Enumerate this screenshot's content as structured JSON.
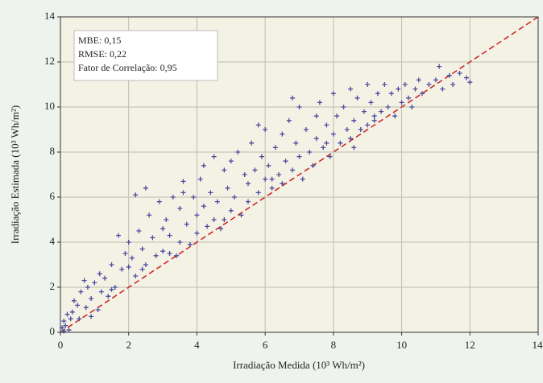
{
  "chart_data": {
    "type": "scatter",
    "xlabel": "Irradiação Medida (10³ Wh/m²)",
    "ylabel": "Irradiação Estimada (10³ Wh/m²)",
    "annotations": [
      "MBE: 0,15",
      "RMSE: 0,22",
      "Fator de Correlação: 0,95"
    ],
    "xlim": [
      0,
      14
    ],
    "ylim": [
      0,
      14
    ],
    "xticks": [
      0,
      2,
      4,
      6,
      8,
      10,
      12,
      14
    ],
    "yticks": [
      0,
      2,
      4,
      6,
      8,
      10,
      12,
      14
    ],
    "grid": true,
    "color": "#4b4b9e",
    "reference_line": {
      "x": [
        0,
        14
      ],
      "y": [
        0,
        14
      ],
      "color": "#cc2a2a"
    },
    "x": [
      0.05,
      0.1,
      0.15,
      0.2,
      0.25,
      0.3,
      0.1,
      0.35,
      0.4,
      0.5,
      0.55,
      0.6,
      0.7,
      0.75,
      0.8,
      0.9,
      1.0,
      1.1,
      1.15,
      1.2,
      1.3,
      1.4,
      1.5,
      1.6,
      1.7,
      1.8,
      1.9,
      2.0,
      2.0,
      2.1,
      2.2,
      2.2,
      2.3,
      2.4,
      2.5,
      2.5,
      2.6,
      2.7,
      2.8,
      2.9,
      3.0,
      3.0,
      3.1,
      3.2,
      3.3,
      3.4,
      3.5,
      3.5,
      3.6,
      3.7,
      3.8,
      3.9,
      4.0,
      4.0,
      4.1,
      4.2,
      4.3,
      4.4,
      4.5,
      4.5,
      4.6,
      4.7,
      4.8,
      4.9,
      5.0,
      5.0,
      5.1,
      5.2,
      5.3,
      5.4,
      5.5,
      5.5,
      5.6,
      5.7,
      5.8,
      5.9,
      6.0,
      6.0,
      6.1,
      6.2,
      6.3,
      6.4,
      6.5,
      6.5,
      6.6,
      6.7,
      6.8,
      6.9,
      7.0,
      7.0,
      7.1,
      7.2,
      7.3,
      7.4,
      7.5,
      7.5,
      7.6,
      7.7,
      7.8,
      7.9,
      8.0,
      8.0,
      8.1,
      8.2,
      8.3,
      8.4,
      8.5,
      8.5,
      8.6,
      8.7,
      8.8,
      8.9,
      9.0,
      9.0,
      9.1,
      9.2,
      9.3,
      9.4,
      9.5,
      9.6,
      9.7,
      9.8,
      9.9,
      10.0,
      10.1,
      10.2,
      10.4,
      10.5,
      10.6,
      10.8,
      11.0,
      11.1,
      11.2,
      11.4,
      11.5,
      11.7,
      11.9,
      12.0,
      3.6,
      4.2,
      5.8,
      6.8,
      2.4,
      1.5,
      0.9,
      6.2,
      7.8,
      9.2,
      10.3,
      8.6,
      4.8,
      3.2
    ],
    "y": [
      0.2,
      0.5,
      0.3,
      0.8,
      0.1,
      0.6,
      0.05,
      0.9,
      1.4,
      1.2,
      0.6,
      1.8,
      2.3,
      1.1,
      2.0,
      1.5,
      2.2,
      1.0,
      2.6,
      1.8,
      2.4,
      1.6,
      3.0,
      2.0,
      4.3,
      2.8,
      3.5,
      2.9,
      4.0,
      3.3,
      6.1,
      2.5,
      4.5,
      3.7,
      6.4,
      3.0,
      5.2,
      4.2,
      3.4,
      5.8,
      4.6,
      3.6,
      5.0,
      4.3,
      6.0,
      3.4,
      5.5,
      4.0,
      6.7,
      4.8,
      3.9,
      6.0,
      5.2,
      4.4,
      6.8,
      5.6,
      4.7,
      6.2,
      5.0,
      7.8,
      5.8,
      4.6,
      7.2,
      6.4,
      5.4,
      7.6,
      6.0,
      8.0,
      5.2,
      7.0,
      6.6,
      5.8,
      8.4,
      7.2,
      6.2,
      7.8,
      6.8,
      9.0,
      7.4,
      6.4,
      8.2,
      7.0,
      8.8,
      6.6,
      7.6,
      9.4,
      7.2,
      8.4,
      7.8,
      10.0,
      6.8,
      9.0,
      8.0,
      7.4,
      9.6,
      8.6,
      10.2,
      8.2,
      9.2,
      7.8,
      8.8,
      10.6,
      9.6,
      8.4,
      10.0,
      9.0,
      10.8,
      8.6,
      9.4,
      10.4,
      9.0,
      9.8,
      9.2,
      11.0,
      10.2,
      9.4,
      10.6,
      9.8,
      11.0,
      10.0,
      10.6,
      9.6,
      10.8,
      10.2,
      11.0,
      10.4,
      10.8,
      11.2,
      10.6,
      11.0,
      11.2,
      11.8,
      10.8,
      11.4,
      11.0,
      11.5,
      11.3,
      11.1,
      6.2,
      7.4,
      9.2,
      10.4,
      2.8,
      1.9,
      0.7,
      6.8,
      8.4,
      9.6,
      10.0,
      8.2,
      5.0,
      3.5
    ]
  }
}
